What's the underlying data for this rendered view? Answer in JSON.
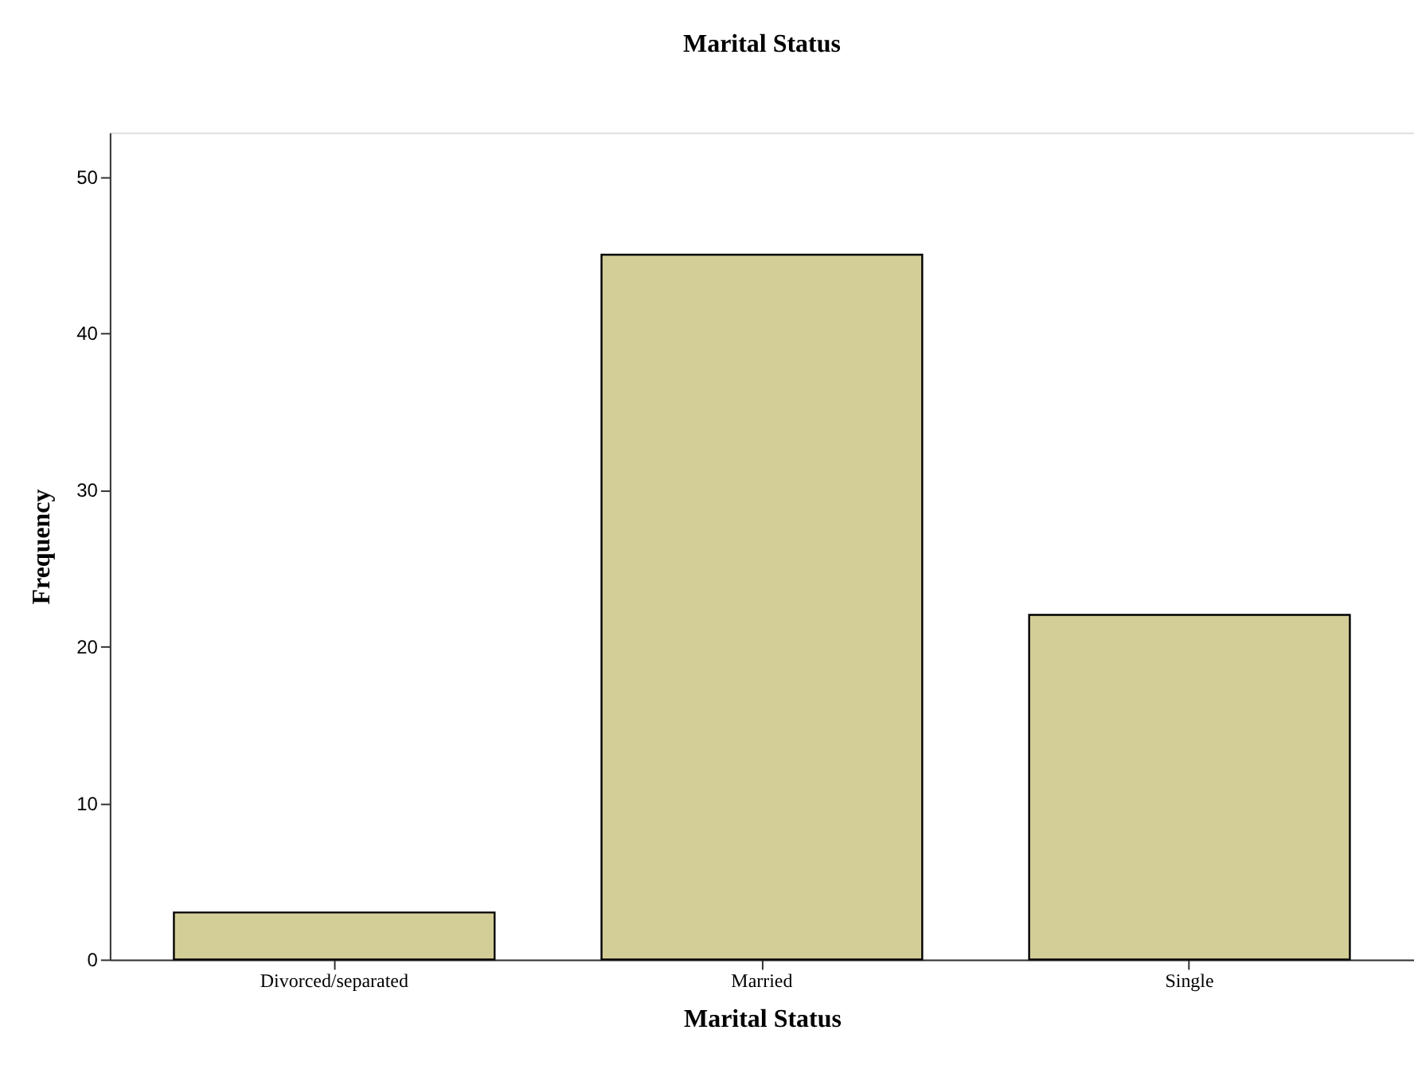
{
  "chart_data": {
    "type": "bar",
    "title": "Marital Status",
    "xlabel": "Marital Status",
    "ylabel": "Frequency",
    "categories": [
      "Divorced/separated",
      "Married",
      "Single"
    ],
    "values": [
      3,
      45,
      22
    ],
    "color": "#d3ce97",
    "ylim": [
      0,
      52.8
    ],
    "yticks": [
      0,
      10,
      20,
      30,
      40,
      50
    ],
    "grid": false
  }
}
